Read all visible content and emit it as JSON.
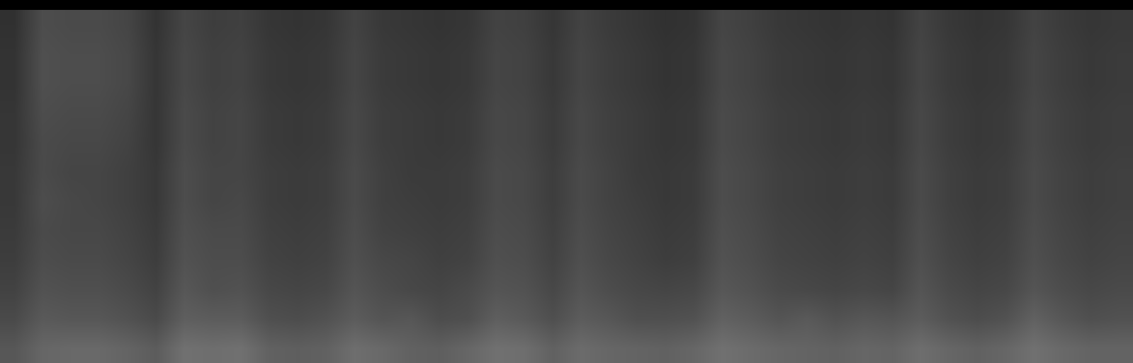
{
  "chart_data": {
    "type": "heatmap",
    "tick_labels": false,
    "grid": false,
    "colors": [
      "#000000",
      "#ffffff"
    ],
    "color_range": [
      0,
      100
    ],
    "cells": [
      [
        34,
        40,
        41,
        41,
        39,
        36,
        44,
        43,
        44,
        38,
        37,
        38,
        43,
        41,
        38,
        37,
        40,
        44,
        43,
        38,
        42,
        40,
        39,
        38,
        40,
        44,
        42,
        40,
        39,
        38,
        40,
        39,
        43,
        40,
        38,
        40,
        44,
        41,
        39,
        39
      ],
      [
        29,
        35,
        34,
        34,
        32,
        29,
        37,
        36,
        36,
        31,
        30,
        32,
        36,
        33,
        34,
        30,
        31,
        37,
        35,
        31,
        36,
        34,
        31,
        31,
        32,
        38,
        36,
        33,
        35,
        32,
        34,
        33,
        36,
        32,
        30,
        32,
        38,
        34,
        31,
        32
      ],
      [
        26,
        32,
        31,
        31,
        29,
        26,
        34,
        31,
        32,
        28,
        27,
        28,
        33,
        30,
        28,
        27,
        29,
        33,
        32,
        28,
        33,
        30,
        28,
        27,
        28,
        34,
        32,
        29,
        28,
        27,
        28,
        27,
        33,
        29,
        27,
        28,
        33,
        30,
        28,
        29
      ],
      [
        24,
        30,
        29,
        29,
        27,
        24,
        32,
        30,
        30,
        26,
        25,
        26,
        31,
        28,
        27,
        25,
        26,
        31,
        30,
        26,
        31,
        28,
        26,
        24,
        25,
        32,
        30,
        27,
        26,
        25,
        26,
        25,
        31,
        27,
        25,
        26,
        31,
        28,
        26,
        27
      ],
      [
        23,
        29,
        28,
        28,
        26,
        23,
        31,
        29,
        29,
        25,
        24,
        25,
        30,
        26,
        25,
        24,
        25,
        30,
        29,
        25,
        30,
        27,
        25,
        23,
        24,
        31,
        29,
        26,
        25,
        24,
        25,
        24,
        30,
        26,
        24,
        25,
        30,
        27,
        25,
        26
      ],
      [
        22,
        30,
        28,
        27,
        25,
        22,
        30,
        27,
        28,
        24,
        23,
        24,
        29,
        25,
        24,
        23,
        24,
        29,
        28,
        24,
        29,
        26,
        24,
        22,
        23,
        30,
        28,
        25,
        24,
        23,
        24,
        23,
        29,
        25,
        23,
        24,
        29,
        26,
        24,
        25
      ],
      [
        22,
        29,
        27,
        27,
        25,
        22,
        30,
        27,
        27,
        24,
        23,
        24,
        29,
        25,
        23,
        23,
        24,
        29,
        28,
        24,
        29,
        26,
        23,
        22,
        23,
        30,
        28,
        25,
        24,
        23,
        24,
        23,
        29,
        25,
        23,
        24,
        29,
        26,
        24,
        25
      ],
      [
        21,
        29,
        28,
        28,
        26,
        21,
        29,
        26,
        27,
        23,
        22,
        23,
        28,
        24,
        23,
        22,
        23,
        28,
        27,
        23,
        28,
        25,
        23,
        21,
        22,
        29,
        27,
        24,
        23,
        22,
        23,
        22,
        28,
        24,
        22,
        23,
        28,
        25,
        23,
        24
      ],
      [
        21,
        30,
        29,
        29,
        27,
        21,
        29,
        26,
        27,
        23,
        22,
        23,
        28,
        24,
        23,
        22,
        23,
        28,
        27,
        23,
        28,
        25,
        23,
        21,
        22,
        29,
        27,
        24,
        23,
        22,
        23,
        22,
        28,
        24,
        22,
        23,
        28,
        25,
        23,
        24
      ],
      [
        20,
        31,
        30,
        30,
        28,
        21,
        28,
        25,
        26,
        22,
        21,
        22,
        27,
        23,
        22,
        21,
        22,
        27,
        26,
        22,
        27,
        24,
        22,
        20,
        21,
        28,
        26,
        23,
        22,
        21,
        22,
        21,
        27,
        23,
        21,
        22,
        27,
        24,
        22,
        23
      ],
      [
        20,
        31,
        30,
        30,
        28,
        21,
        28,
        25,
        26,
        22,
        21,
        22,
        27,
        23,
        22,
        21,
        22,
        27,
        26,
        22,
        27,
        24,
        22,
        20,
        21,
        28,
        26,
        23,
        22,
        21,
        22,
        21,
        27,
        23,
        21,
        22,
        27,
        24,
        22,
        23
      ],
      [
        19,
        30,
        29,
        29,
        27,
        20,
        27,
        24,
        25,
        21,
        20,
        21,
        26,
        22,
        21,
        20,
        21,
        26,
        25,
        21,
        26,
        23,
        21,
        19,
        20,
        27,
        25,
        22,
        21,
        20,
        21,
        20,
        26,
        22,
        20,
        21,
        26,
        23,
        21,
        22
      ]
    ]
  }
}
